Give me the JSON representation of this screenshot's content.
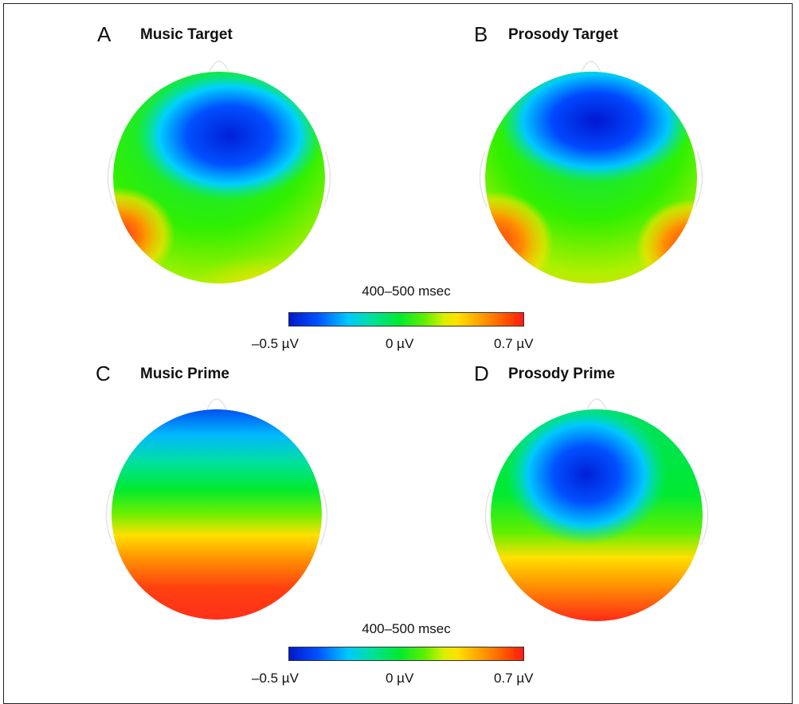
{
  "panels": [
    {
      "letter": "A",
      "title": "Music Target"
    },
    {
      "letter": "B",
      "title": "Prosody Target"
    },
    {
      "letter": "C",
      "title": "Music Prime"
    },
    {
      "letter": "D",
      "title": "Prosody Prime"
    }
  ],
  "colorbars": [
    {
      "title": "400–500 msec",
      "ticks": [
        "–0.5 µV",
        "0 µV",
        "0.7 µV"
      ]
    },
    {
      "title": "400–500 msec",
      "ticks": [
        "–0.5 µV",
        "0 µV",
        "0.7 µV"
      ]
    }
  ],
  "colors": {
    "negative": "#0018c8",
    "neutral": "#00ea30",
    "positive": "#ff1a1a"
  }
}
